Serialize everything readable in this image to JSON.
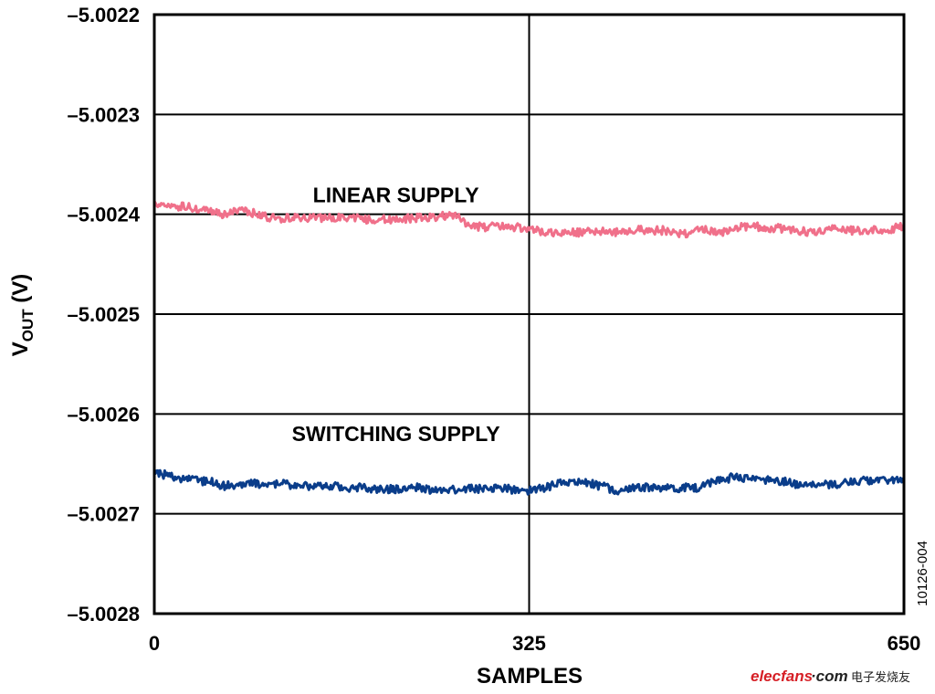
{
  "chart_data": {
    "type": "line",
    "title": "",
    "xlabel": "SAMPLES",
    "ylabel": {
      "main": "V",
      "sub": "OUT",
      "unit": " (V)"
    },
    "xlim": [
      0,
      650
    ],
    "ylim": [
      -5.0028,
      -5.0022
    ],
    "xticks": [
      0,
      325,
      650
    ],
    "xtick_labels": [
      "0",
      "325",
      "650"
    ],
    "yticks": [
      -5.0022,
      -5.0023,
      -5.0024,
      -5.0025,
      -5.0026,
      -5.0027,
      -5.0028
    ],
    "ytick_labels": [
      "–5.0022",
      "–5.0023",
      "–5.0024",
      "–5.0025",
      "–5.0026",
      "–5.0027",
      "–5.0028"
    ],
    "grid": true,
    "series": [
      {
        "name": "LINEAR SUPPLY",
        "color": "#f0708a",
        "x": [
          0,
          10,
          20,
          30,
          40,
          50,
          60,
          70,
          80,
          90,
          100,
          110,
          120,
          130,
          140,
          150,
          160,
          170,
          180,
          190,
          200,
          210,
          220,
          230,
          240,
          250,
          260,
          270,
          280,
          290,
          300,
          310,
          320,
          330,
          340,
          350,
          360,
          370,
          380,
          390,
          400,
          410,
          420,
          430,
          440,
          450,
          460,
          470,
          480,
          490,
          500,
          510,
          520,
          530,
          540,
          550,
          560,
          570,
          580,
          590,
          600,
          610,
          620,
          630,
          640,
          650
        ],
        "values": [
          -5.002389,
          -5.002391,
          -5.002392,
          -5.002393,
          -5.002396,
          -5.002398,
          -5.0024,
          -5.002398,
          -5.002397,
          -5.0024,
          -5.002403,
          -5.002405,
          -5.002403,
          -5.002404,
          -5.002403,
          -5.002404,
          -5.002403,
          -5.002405,
          -5.002404,
          -5.002406,
          -5.002405,
          -5.002406,
          -5.002404,
          -5.002403,
          -5.002403,
          -5.002402,
          -5.002401,
          -5.002408,
          -5.002412,
          -5.002413,
          -5.002412,
          -5.002413,
          -5.002414,
          -5.002415,
          -5.002418,
          -5.002419,
          -5.002419,
          -5.002418,
          -5.002416,
          -5.002417,
          -5.002418,
          -5.002417,
          -5.002415,
          -5.002417,
          -5.002416,
          -5.002418,
          -5.002419,
          -5.002417,
          -5.002416,
          -5.002418,
          -5.002415,
          -5.002413,
          -5.002412,
          -5.002414,
          -5.002414,
          -5.002416,
          -5.002417,
          -5.002418,
          -5.002416,
          -5.002415,
          -5.002416,
          -5.002417,
          -5.002417,
          -5.002415,
          -5.002415,
          -5.002411
        ]
      },
      {
        "name": "SWITCHING SUPPLY",
        "color": "#0a3d8a",
        "x": [
          0,
          10,
          20,
          30,
          40,
          50,
          60,
          70,
          80,
          90,
          100,
          110,
          120,
          130,
          140,
          150,
          160,
          170,
          180,
          190,
          200,
          210,
          220,
          230,
          240,
          250,
          260,
          270,
          280,
          290,
          300,
          310,
          320,
          330,
          340,
          350,
          360,
          370,
          380,
          390,
          400,
          410,
          420,
          430,
          440,
          450,
          460,
          470,
          480,
          490,
          500,
          510,
          520,
          530,
          540,
          550,
          560,
          570,
          580,
          590,
          600,
          610,
          620,
          630,
          640,
          650
        ],
        "values": [
          -5.002658,
          -5.002661,
          -5.002664,
          -5.002666,
          -5.002667,
          -5.002668,
          -5.002672,
          -5.002671,
          -5.00267,
          -5.00267,
          -5.00267,
          -5.00267,
          -5.002671,
          -5.002671,
          -5.002673,
          -5.002672,
          -5.002673,
          -5.002674,
          -5.002674,
          -5.002675,
          -5.002675,
          -5.002675,
          -5.002674,
          -5.002674,
          -5.002676,
          -5.002677,
          -5.002676,
          -5.002675,
          -5.002675,
          -5.002674,
          -5.002673,
          -5.002676,
          -5.002677,
          -5.002676,
          -5.002673,
          -5.00267,
          -5.002668,
          -5.002668,
          -5.00267,
          -5.002673,
          -5.002677,
          -5.002675,
          -5.002673,
          -5.002674,
          -5.002675,
          -5.002675,
          -5.002674,
          -5.002674,
          -5.00267,
          -5.002666,
          -5.002664,
          -5.002664,
          -5.002665,
          -5.002666,
          -5.002666,
          -5.002669,
          -5.002671,
          -5.002671,
          -5.002671,
          -5.00267,
          -5.002669,
          -5.002667,
          -5.002667,
          -5.002667,
          -5.002666,
          -5.002666
        ]
      }
    ],
    "annotations": [
      {
        "text": "LINEAR SUPPLY",
        "x": 200,
        "y": -5.002388
      },
      {
        "text": "SWITCHING SUPPLY",
        "x": 200,
        "y": -5.002627
      }
    ],
    "figure_id": "10126-004",
    "watermark": {
      "brand": "elecfans",
      "suffix": "·com",
      "cn": "电子发烧友"
    }
  }
}
